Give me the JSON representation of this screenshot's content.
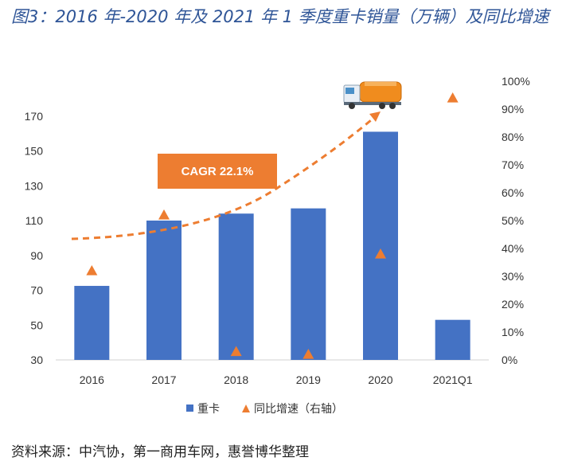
{
  "title": "图3：2016 年-2020 年及 2021 年 1 季度重卡销量（万辆）及同比增速",
  "source": "资料来源：中汽协，第一商用车网，惠誉博华整理",
  "annotation": "CAGR 22.1%",
  "colors": {
    "bar": "#4472c4",
    "marker": "#ed7d31",
    "title": "#2f5597"
  },
  "icons": [
    "truck-icon"
  ],
  "chart_data": {
    "type": "bar",
    "categories": [
      "2016",
      "2017",
      "2018",
      "2019",
      "2020",
      "2021Q1"
    ],
    "series": [
      {
        "name": "重卡",
        "type": "bar",
        "axis": "left",
        "values": [
          72.5,
          110,
          114,
          117,
          161,
          53
        ]
      },
      {
        "name": "同比增速（右轴）",
        "type": "scatter",
        "marker": "triangle",
        "axis": "right",
        "values": [
          0.32,
          0.52,
          0.03,
          0.02,
          0.38,
          0.94
        ]
      }
    ],
    "y_left": {
      "ylim": [
        30,
        190
      ],
      "ticks": [
        "30",
        "50",
        "70",
        "90",
        "110",
        "130",
        "150",
        "170"
      ]
    },
    "y_right": {
      "ylim": [
        0,
        1
      ],
      "ticks": [
        "0%",
        "10%",
        "20%",
        "30%",
        "40%",
        "50%",
        "60%",
        "70%",
        "80%",
        "90%",
        "100%"
      ]
    },
    "legend": {
      "position": "bottom",
      "items": [
        "重卡",
        "同比增速（右轴）"
      ]
    },
    "grid": false
  }
}
